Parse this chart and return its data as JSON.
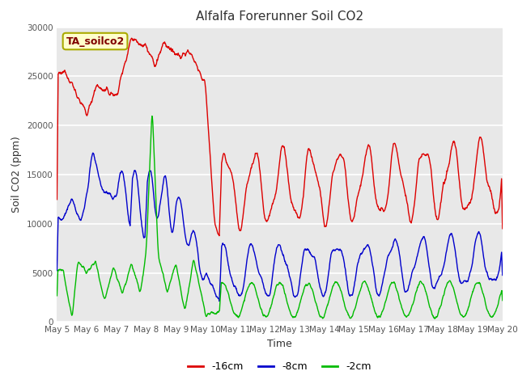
{
  "title": "Alfalfa Forerunner Soil CO2",
  "xlabel": "Time",
  "ylabel": "Soil CO2 (ppm)",
  "ylim": [
    0,
    30000
  ],
  "yticks": [
    0,
    5000,
    10000,
    15000,
    20000,
    25000,
    30000
  ],
  "xtick_labels": [
    "May 5",
    "May 6",
    "May 7",
    "May 8",
    "May 9",
    "May 10",
    "May 11",
    "May 12",
    "May 13",
    "May 14",
    "May 15",
    "May 16",
    "May 17",
    "May 18",
    "May 19",
    "May 20"
  ],
  "colors": {
    "red": "#dd0000",
    "blue": "#0000cc",
    "green": "#00bb00"
  },
  "legend_labels": [
    "-16cm",
    "-8cm",
    "-2cm"
  ],
  "annotation": "TA_soilco2",
  "annotation_color": "#800000",
  "annotation_bg": "#ffffcc",
  "annotation_border": "#aaaa00",
  "fig_bg": "#ffffff",
  "plot_bg": "#e8e8e8",
  "grid_color": "#ffffff",
  "n_points": 1500
}
